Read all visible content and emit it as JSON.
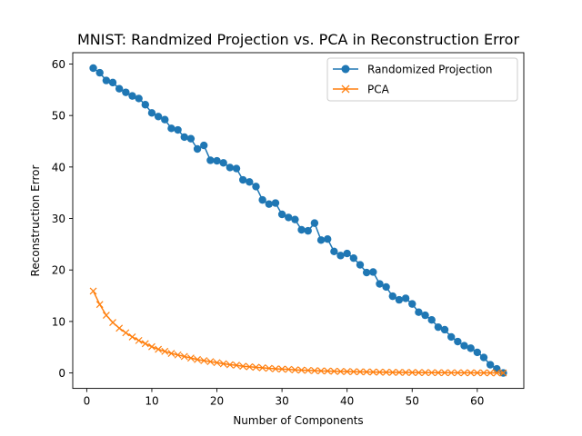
{
  "chart_data": {
    "type": "line",
    "title": "MNIST: Randmized Projection vs. PCA in Reconstruction Error",
    "xlabel": "Number of Components",
    "ylabel": "Reconstruction Error",
    "xlim": [
      -2.15,
      67.15
    ],
    "ylim": [
      -3.0,
      62.2
    ],
    "xticks": [
      0,
      10,
      20,
      30,
      40,
      50,
      60
    ],
    "yticks": [
      0,
      10,
      20,
      30,
      40,
      50,
      60
    ],
    "grid": false,
    "legend_position": "top-right",
    "x": [
      1,
      2,
      3,
      4,
      5,
      6,
      7,
      8,
      9,
      10,
      11,
      12,
      13,
      14,
      15,
      16,
      17,
      18,
      19,
      20,
      21,
      22,
      23,
      24,
      25,
      26,
      27,
      28,
      29,
      30,
      31,
      32,
      33,
      34,
      35,
      36,
      37,
      38,
      39,
      40,
      41,
      42,
      43,
      44,
      45,
      46,
      47,
      48,
      49,
      50,
      51,
      52,
      53,
      54,
      55,
      56,
      57,
      58,
      59,
      60,
      61,
      62,
      63,
      64
    ],
    "series": [
      {
        "name": "Randomized Projection",
        "color": "#1f77b4",
        "marker": "circle",
        "values": [
          59.2,
          58.3,
          56.8,
          56.4,
          55.2,
          54.5,
          53.8,
          53.3,
          52.1,
          50.5,
          49.8,
          49.2,
          47.5,
          47.2,
          45.8,
          45.5,
          43.5,
          44.2,
          41.3,
          41.2,
          40.8,
          39.9,
          39.7,
          37.5,
          37.1,
          36.2,
          33.6,
          32.8,
          33.0,
          30.8,
          30.2,
          29.8,
          27.8,
          27.6,
          29.1,
          25.8,
          26.0,
          23.6,
          22.8,
          23.2,
          22.3,
          21.0,
          19.5,
          19.6,
          17.3,
          16.7,
          14.9,
          14.2,
          14.5,
          13.4,
          11.8,
          11.2,
          10.3,
          8.9,
          8.4,
          7.0,
          6.1,
          5.3,
          4.8,
          4.0,
          3.0,
          1.6,
          0.8,
          0.0
        ]
      },
      {
        "name": "PCA",
        "color": "#ff7f0e",
        "marker": "x",
        "values": [
          15.9,
          13.3,
          11.2,
          9.8,
          8.7,
          7.8,
          7.0,
          6.3,
          5.7,
          5.1,
          4.6,
          4.2,
          3.8,
          3.5,
          3.2,
          2.9,
          2.6,
          2.4,
          2.2,
          2.0,
          1.8,
          1.6,
          1.5,
          1.3,
          1.2,
          1.1,
          1.0,
          0.9,
          0.8,
          0.75,
          0.7,
          0.6,
          0.55,
          0.5,
          0.45,
          0.4,
          0.38,
          0.33,
          0.3,
          0.27,
          0.24,
          0.22,
          0.2,
          0.18,
          0.16,
          0.14,
          0.12,
          0.11,
          0.1,
          0.09,
          0.08,
          0.07,
          0.06,
          0.05,
          0.05,
          0.04,
          0.04,
          0.03,
          0.03,
          0.02,
          0.02,
          0.01,
          0.01,
          0.0
        ]
      }
    ]
  }
}
